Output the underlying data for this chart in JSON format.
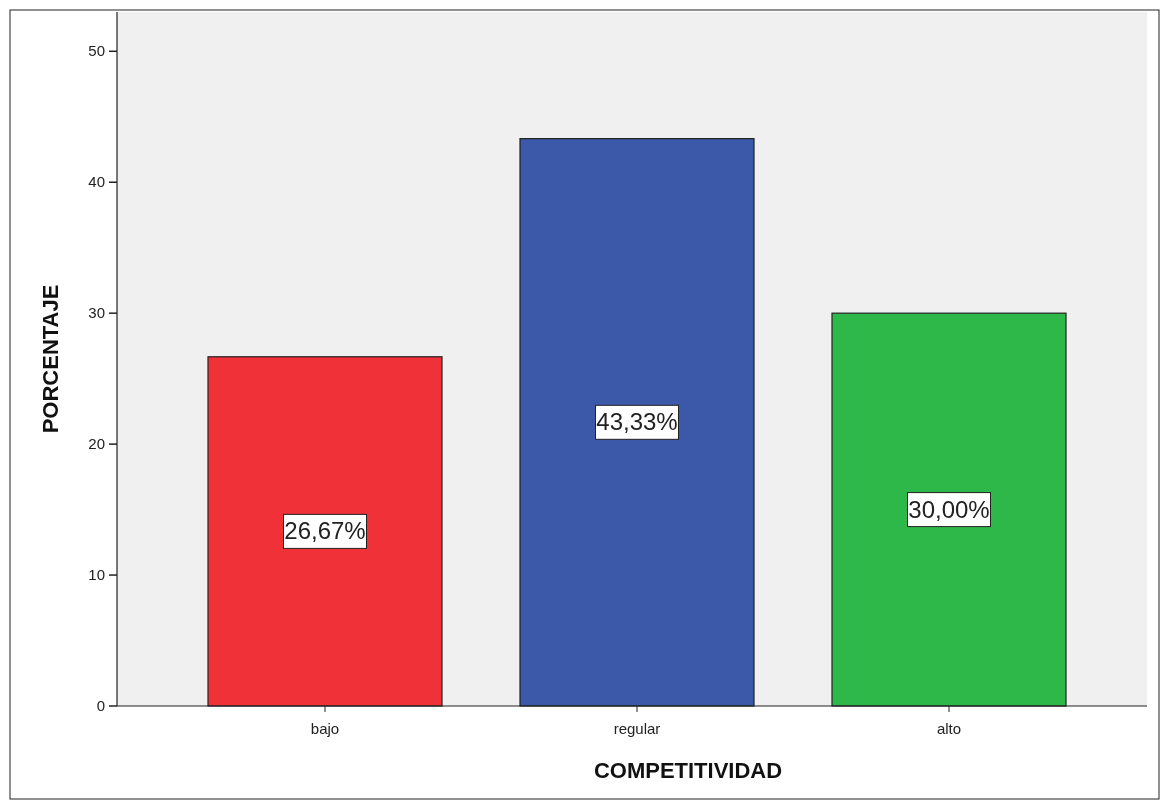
{
  "chart_data": {
    "type": "bar",
    "xlabel": "COMPETITIVIDAD",
    "ylabel": "PORCENTAJE",
    "categories": [
      "bajo",
      "regular",
      "alto"
    ],
    "values": [
      26.67,
      43.33,
      30.0
    ],
    "colors": [
      "#f03238",
      "#3c58a8",
      "#2eb84a"
    ],
    "value_labels": [
      "26,67%",
      "43,33%",
      "30,00%"
    ],
    "ylim": [
      0,
      53
    ],
    "yticks": [
      0,
      10,
      20,
      30,
      40,
      50
    ],
    "grid": false
  }
}
